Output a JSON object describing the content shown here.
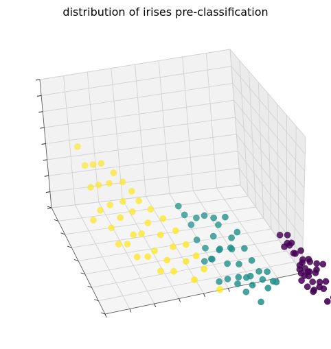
{
  "chart_data": {
    "type": "scatter",
    "projection": "3d",
    "title": "distribution of irises pre-classification",
    "xlabel": "",
    "ylabel": "",
    "zlabel": "",
    "tick_labels_visible": false,
    "grid": true,
    "legend": "none",
    "colormap": "viridis",
    "series": [
      {
        "color": "#440154",
        "points": [
          [
            0.92,
            0.62,
            0.58
          ],
          [
            0.9,
            0.6,
            0.55
          ],
          [
            0.88,
            0.63,
            0.52
          ],
          [
            0.94,
            0.64,
            0.5
          ],
          [
            0.91,
            0.58,
            0.47
          ],
          [
            0.86,
            0.55,
            0.6
          ],
          [
            0.95,
            0.66,
            0.45
          ],
          [
            0.89,
            0.59,
            0.43
          ],
          [
            0.93,
            0.61,
            0.4
          ],
          [
            0.87,
            0.57,
            0.56
          ],
          [
            0.96,
            0.68,
            0.42
          ],
          [
            0.85,
            0.56,
            0.62
          ],
          [
            0.9,
            0.65,
            0.38
          ],
          [
            0.92,
            0.66,
            0.36
          ],
          [
            0.88,
            0.62,
            0.48
          ],
          [
            0.94,
            0.7,
            0.44
          ],
          [
            0.91,
            0.67,
            0.52
          ],
          [
            0.86,
            0.6,
            0.66
          ],
          [
            0.89,
            0.63,
            0.64
          ],
          [
            0.97,
            0.69,
            0.49
          ],
          [
            0.93,
            0.59,
            0.54
          ],
          [
            0.9,
            0.58,
            0.51
          ],
          [
            0.95,
            0.63,
            0.57
          ],
          [
            0.88,
            0.64,
            0.41
          ],
          [
            0.84,
            0.54,
            0.57
          ],
          [
            0.92,
            0.68,
            0.39
          ],
          [
            0.87,
            0.61,
            0.59
          ],
          [
            0.99,
            0.72,
            0.4
          ],
          [
            0.96,
            0.74,
            0.37
          ],
          [
            0.91,
            0.64,
            0.46
          ],
          [
            0.85,
            0.58,
            0.7
          ],
          [
            0.83,
            0.52,
            0.64
          ],
          [
            0.94,
            0.67,
            0.55
          ],
          [
            0.89,
            0.66,
            0.47
          ],
          [
            0.9,
            0.69,
            0.53
          ],
          [
            0.97,
            0.66,
            0.6
          ]
        ]
      },
      {
        "color": "#21918c",
        "points": [
          [
            0.62,
            0.48,
            0.64
          ],
          [
            0.58,
            0.44,
            0.58
          ],
          [
            0.66,
            0.5,
            0.56
          ],
          [
            0.6,
            0.42,
            0.52
          ],
          [
            0.64,
            0.47,
            0.48
          ],
          [
            0.55,
            0.4,
            0.55
          ],
          [
            0.68,
            0.52,
            0.46
          ],
          [
            0.57,
            0.45,
            0.44
          ],
          [
            0.63,
            0.51,
            0.42
          ],
          [
            0.7,
            0.55,
            0.4
          ],
          [
            0.52,
            0.38,
            0.5
          ],
          [
            0.59,
            0.46,
            0.36
          ],
          [
            0.65,
            0.53,
            0.33
          ],
          [
            0.72,
            0.58,
            0.35
          ],
          [
            0.54,
            0.41,
            0.3
          ],
          [
            0.61,
            0.49,
            0.28
          ],
          [
            0.67,
            0.56,
            0.26
          ],
          [
            0.75,
            0.6,
            0.38
          ],
          [
            0.5,
            0.36,
            0.42
          ],
          [
            0.56,
            0.43,
            0.24
          ],
          [
            0.69,
            0.57,
            0.22
          ],
          [
            0.73,
            0.59,
            0.3
          ],
          [
            0.48,
            0.34,
            0.47
          ],
          [
            0.53,
            0.42,
            0.2
          ],
          [
            0.78,
            0.62,
            0.33
          ],
          [
            0.6,
            0.52,
            0.18
          ],
          [
            0.66,
            0.58,
            0.16
          ],
          [
            0.46,
            0.33,
            0.52
          ],
          [
            0.71,
            0.62,
            0.14
          ],
          [
            0.57,
            0.49,
            0.12
          ],
          [
            0.64,
            0.55,
            0.24
          ],
          [
            0.74,
            0.64,
            0.28
          ],
          [
            0.51,
            0.4,
            0.34
          ],
          [
            0.68,
            0.6,
            0.31
          ],
          [
            0.58,
            0.5,
            0.38
          ],
          [
            0.62,
            0.54,
            0.45
          ],
          [
            0.55,
            0.47,
            0.27
          ],
          [
            0.76,
            0.66,
            0.36
          ],
          [
            0.63,
            0.57,
            0.2
          ]
        ]
      },
      {
        "color": "#fde725",
        "points": [
          [
            0.18,
            0.22,
            0.62
          ],
          [
            0.22,
            0.26,
            0.6
          ],
          [
            0.15,
            0.2,
            0.58
          ],
          [
            0.25,
            0.28,
            0.56
          ],
          [
            0.12,
            0.18,
            0.54
          ],
          [
            0.28,
            0.3,
            0.52
          ],
          [
            0.2,
            0.25,
            0.5
          ],
          [
            0.1,
            0.16,
            0.66
          ],
          [
            0.3,
            0.33,
            0.48
          ],
          [
            0.16,
            0.23,
            0.45
          ],
          [
            0.24,
            0.3,
            0.42
          ],
          [
            0.34,
            0.36,
            0.46
          ],
          [
            0.13,
            0.21,
            0.4
          ],
          [
            0.27,
            0.33,
            0.38
          ],
          [
            0.38,
            0.4,
            0.44
          ],
          [
            0.19,
            0.28,
            0.35
          ],
          [
            0.32,
            0.38,
            0.36
          ],
          [
            0.42,
            0.44,
            0.4
          ],
          [
            0.22,
            0.32,
            0.3
          ],
          [
            0.36,
            0.42,
            0.32
          ],
          [
            0.15,
            0.27,
            0.28
          ],
          [
            0.29,
            0.38,
            0.26
          ],
          [
            0.45,
            0.48,
            0.34
          ],
          [
            0.26,
            0.36,
            0.22
          ],
          [
            0.4,
            0.46,
            0.28
          ],
          [
            0.18,
            0.32,
            0.2
          ],
          [
            0.33,
            0.42,
            0.18
          ],
          [
            0.48,
            0.52,
            0.3
          ],
          [
            0.23,
            0.37,
            0.14
          ],
          [
            0.37,
            0.46,
            0.16
          ],
          [
            0.12,
            0.26,
            0.18
          ],
          [
            0.44,
            0.5,
            0.22
          ],
          [
            0.3,
            0.42,
            0.12
          ],
          [
            0.2,
            0.34,
            0.1
          ],
          [
            0.5,
            0.56,
            0.24
          ],
          [
            0.39,
            0.48,
            0.1
          ],
          [
            0.26,
            0.4,
            0.08
          ],
          [
            0.55,
            0.6,
            0.14
          ],
          [
            0.34,
            0.46,
            0.06
          ],
          [
            0.46,
            0.54,
            0.12
          ]
        ]
      }
    ]
  }
}
